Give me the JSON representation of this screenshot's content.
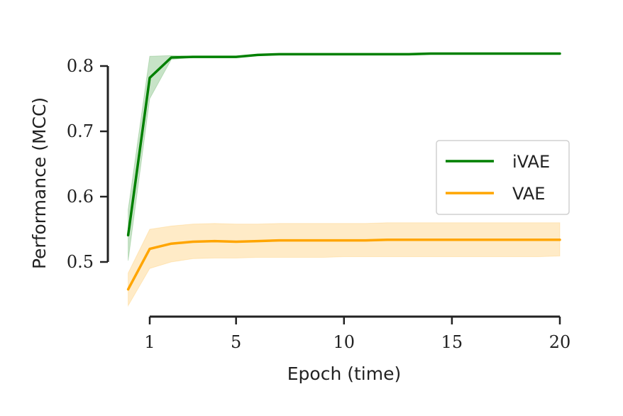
{
  "chart_data": {
    "type": "line",
    "xlabel": "Epoch (time)",
    "ylabel": "Performance (MCC)",
    "x": [
      0,
      1,
      2,
      3,
      4,
      5,
      6,
      7,
      8,
      9,
      10,
      11,
      12,
      13,
      14,
      15,
      16,
      17,
      18,
      19,
      20
    ],
    "xticks": [
      1,
      5,
      10,
      15,
      20
    ],
    "yticks": [
      0.5,
      0.6,
      0.7,
      0.8
    ],
    "xlim": [
      0,
      20
    ],
    "ylim": [
      0.5,
      0.8
    ],
    "grid": false,
    "legend_position": "right",
    "series": [
      {
        "name": "iVAE",
        "color": "#008000",
        "values": [
          0.541,
          0.782,
          0.813,
          0.814,
          0.814,
          0.814,
          0.817,
          0.818,
          0.818,
          0.818,
          0.818,
          0.818,
          0.818,
          0.818,
          0.819,
          0.819,
          0.819,
          0.819,
          0.819,
          0.819,
          0.819
        ],
        "band_lower": [
          0.502,
          0.75,
          0.81,
          0.813,
          0.813,
          0.813,
          0.816,
          0.817,
          0.817,
          0.817,
          0.817,
          0.817,
          0.817,
          0.817,
          0.818,
          0.818,
          0.818,
          0.818,
          0.818,
          0.818,
          0.818
        ],
        "band_upper": [
          0.58,
          0.815,
          0.816,
          0.815,
          0.815,
          0.815,
          0.818,
          0.819,
          0.819,
          0.819,
          0.819,
          0.819,
          0.819,
          0.819,
          0.82,
          0.82,
          0.82,
          0.82,
          0.82,
          0.82,
          0.82
        ]
      },
      {
        "name": "VAE",
        "color": "#FFA500",
        "values": [
          0.458,
          0.52,
          0.528,
          0.531,
          0.532,
          0.531,
          0.532,
          0.533,
          0.533,
          0.533,
          0.533,
          0.533,
          0.534,
          0.534,
          0.534,
          0.534,
          0.534,
          0.534,
          0.534,
          0.534,
          0.534
        ],
        "band_lower": [
          0.433,
          0.49,
          0.5,
          0.505,
          0.506,
          0.506,
          0.507,
          0.507,
          0.507,
          0.507,
          0.508,
          0.508,
          0.508,
          0.508,
          0.508,
          0.508,
          0.508,
          0.508,
          0.508,
          0.508,
          0.509
        ],
        "band_upper": [
          0.483,
          0.55,
          0.555,
          0.558,
          0.559,
          0.558,
          0.558,
          0.559,
          0.559,
          0.559,
          0.559,
          0.559,
          0.56,
          0.56,
          0.56,
          0.56,
          0.56,
          0.56,
          0.56,
          0.56,
          0.56
        ]
      }
    ]
  }
}
